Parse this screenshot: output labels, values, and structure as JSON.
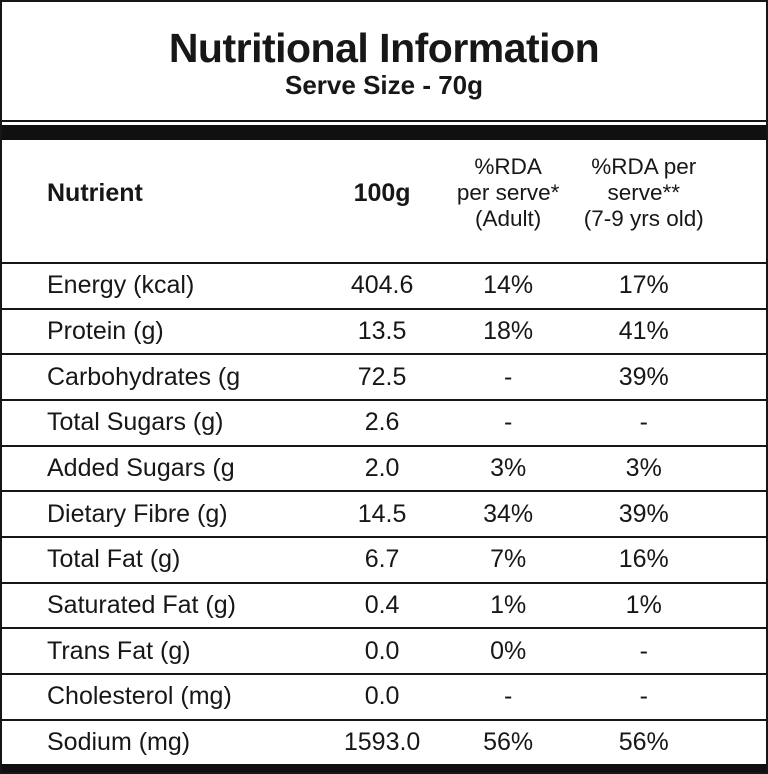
{
  "title": "Nutritional Information",
  "subtitle": "Serve Size - 70g",
  "table": {
    "headers": {
      "nutrient": "Nutrient",
      "per_100g": "100g",
      "rda_adult": {
        "l1": "%RDA",
        "l2": "per serve*",
        "l3": "(Adult)"
      },
      "rda_child": {
        "l1": "%RDA per",
        "l2": "serve**",
        "l3": "(7-9 yrs old)"
      }
    },
    "rows": [
      {
        "nutrient": "Energy (kcal)",
        "per_100g": "404.6",
        "rda_adult": "14%",
        "rda_child": "17%"
      },
      {
        "nutrient": "Protein (g)",
        "per_100g": "13.5",
        "rda_adult": "18%",
        "rda_child": "41%"
      },
      {
        "nutrient": "Carbohydrates (g",
        "per_100g": "72.5",
        "rda_adult": "-",
        "rda_child": "39%"
      },
      {
        "nutrient": "Total Sugars (g)",
        "per_100g": "2.6",
        "rda_adult": "-",
        "rda_child": "-"
      },
      {
        "nutrient": "Added Sugars (g",
        "per_100g": "2.0",
        "rda_adult": "3%",
        "rda_child": "3%"
      },
      {
        "nutrient": "Dietary Fibre (g)",
        "per_100g": "14.5",
        "rda_adult": "34%",
        "rda_child": "39%"
      },
      {
        "nutrient": "Total Fat (g)",
        "per_100g": "6.7",
        "rda_adult": "7%",
        "rda_child": "16%"
      },
      {
        "nutrient": "Saturated Fat (g)",
        "per_100g": "0.4",
        "rda_adult": "1%",
        "rda_child": "1%"
      },
      {
        "nutrient": "Trans Fat (g)",
        "per_100g": "0.0",
        "rda_adult": "0%",
        "rda_child": "-"
      },
      {
        "nutrient": "Cholesterol (mg)",
        "per_100g": "0.0",
        "rda_adult": "-",
        "rda_child": "-"
      },
      {
        "nutrient": "Sodium (mg)",
        "per_100g": "1593.0",
        "rda_adult": "56%",
        "rda_child": "56%"
      }
    ]
  },
  "colors": {
    "background": "#ffffff",
    "text": "#171717",
    "border": "#161616",
    "bar": "#101010"
  }
}
